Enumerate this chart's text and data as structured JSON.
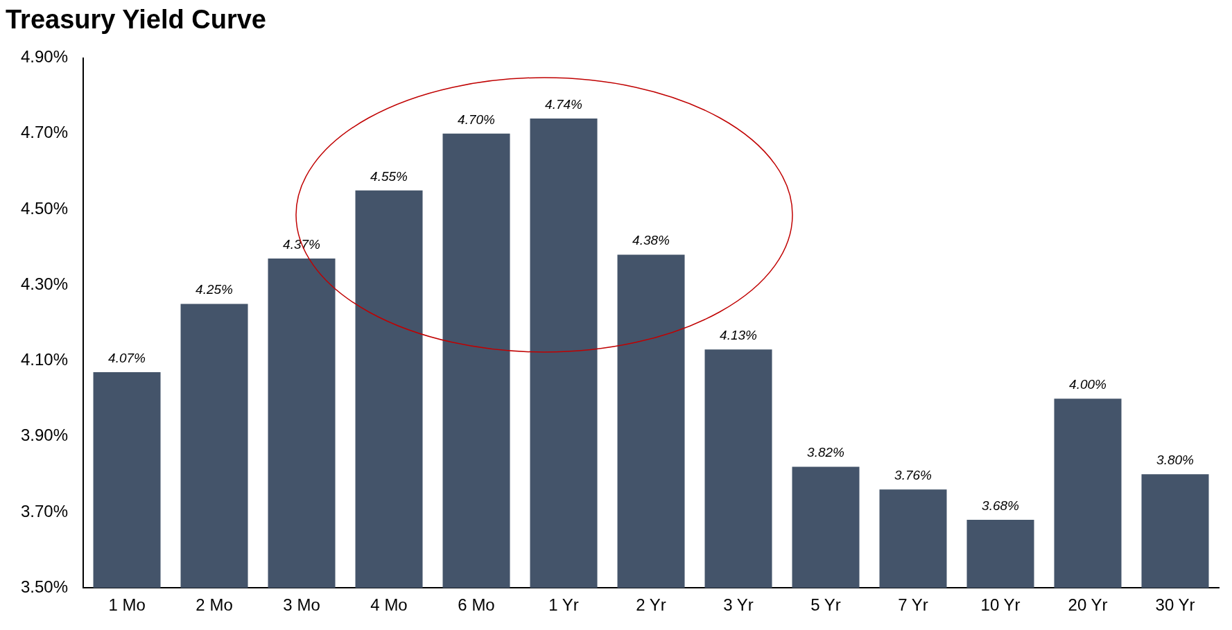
{
  "chart_data": {
    "type": "bar",
    "title": "Treasury Yield Curve",
    "categories": [
      "1 Mo",
      "2 Mo",
      "3 Mo",
      "4 Mo",
      "6 Mo",
      "1 Yr",
      "2 Yr",
      "3 Yr",
      "5 Yr",
      "7 Yr",
      "10 Yr",
      "20 Yr",
      "30 Yr"
    ],
    "values": [
      4.07,
      4.25,
      4.37,
      4.55,
      4.7,
      4.74,
      4.38,
      4.13,
      3.82,
      3.76,
      3.68,
      4.0,
      3.8
    ],
    "value_labels": [
      "4.07%",
      "4.25%",
      "4.37%",
      "4.55%",
      "4.70%",
      "4.74%",
      "4.38%",
      "4.13%",
      "3.82%",
      "3.76%",
      "3.68%",
      "4.00%",
      "3.80%"
    ],
    "color": "#44546a",
    "ylim": [
      3.5,
      4.9
    ],
    "yticks": [
      {
        "value": 3.5,
        "label": "3.50%"
      },
      {
        "value": 3.7,
        "label": "3.70%"
      },
      {
        "value": 3.9,
        "label": "3.90%"
      },
      {
        "value": 4.1,
        "label": "4.10%"
      },
      {
        "value": 4.3,
        "label": "4.30%"
      },
      {
        "value": 4.5,
        "label": "4.50%"
      },
      {
        "value": 4.7,
        "label": "4.70%"
      },
      {
        "value": 4.9,
        "label": "4.90%"
      }
    ],
    "grid": false,
    "legend": false
  }
}
